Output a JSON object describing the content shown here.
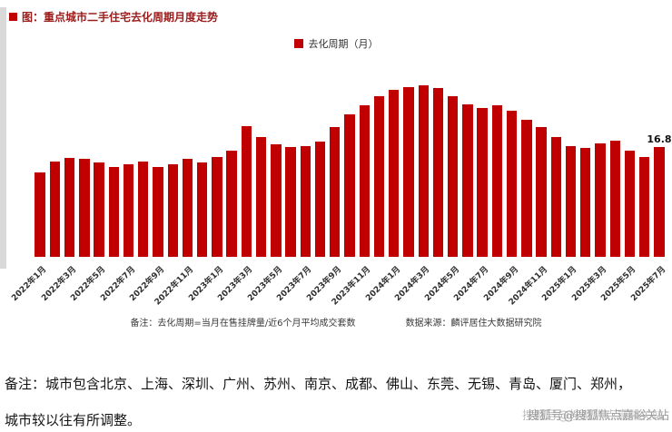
{
  "page": {
    "title": "图：重点城市二手住宅去化周期月度走势",
    "footer_line1": "备注：城市包含北京、上海、深圳、广州、苏州、南京、成都、佛山、东莞、无锡、青岛、厦门、郑州，",
    "footer_line2": "城市较以往有所调整。",
    "watermark": "搜狐号@搜狐焦点嘉峪关站"
  },
  "chart_data": {
    "type": "bar",
    "title": "重点城市二手住宅去化周期月度走势",
    "legend": "去化周期（月）",
    "ylabel": "去化周期（月）",
    "bar_color": "#C00000",
    "grid": false,
    "legend_position": "top",
    "ylim": [
      0,
      28
    ],
    "x_tick_step": 2,
    "categories": [
      "2022年1月",
      "2022年2月",
      "2022年3月",
      "2022年4月",
      "2022年5月",
      "2022年6月",
      "2022年7月",
      "2022年8月",
      "2022年9月",
      "2022年10月",
      "2022年11月",
      "2022年12月",
      "2023年1月",
      "2023年2月",
      "2023年3月",
      "2023年4月",
      "2023年5月",
      "2023年6月",
      "2023年7月",
      "2023年8月",
      "2023年9月",
      "2023年10月",
      "2023年11月",
      "2023年12月",
      "2024年1月",
      "2024年2月",
      "2024年3月",
      "2024年4月",
      "2024年5月",
      "2024年6月",
      "2024年7月",
      "2024年8月",
      "2024年9月",
      "2024年10月",
      "2024年11月",
      "2024年12月",
      "2025年1月",
      "2025年2月",
      "2025年3月",
      "2025年4月",
      "2025年5月",
      "2025年6月",
      "2025年7月"
    ],
    "values": [
      12.9,
      14.6,
      15.2,
      15.0,
      14.4,
      13.7,
      14.2,
      14.6,
      13.8,
      14.1,
      15.0,
      14.4,
      15.3,
      16.2,
      20.0,
      18.3,
      17.2,
      16.8,
      17.0,
      17.6,
      19.8,
      21.8,
      23.2,
      24.6,
      25.6,
      26.0,
      26.3,
      25.8,
      24.6,
      23.4,
      22.8,
      23.2,
      22.4,
      21.0,
      19.8,
      18.4,
      17.0,
      16.6,
      17.4,
      17.8,
      16.2,
      15.3,
      16.8
    ],
    "x_tick_labels": [
      "2022年1月",
      "2022年3月",
      "2022年5月",
      "2022年7月",
      "2022年9月",
      "2022年11月",
      "2023年1月",
      "2023年3月",
      "2023年5月",
      "2023年7月",
      "2023年9月",
      "2023年11月",
      "2024年1月",
      "2024年3月",
      "2024年5月",
      "2024年7月",
      "2024年9月",
      "2024年11月",
      "2025年1月",
      "2025年3月",
      "2025年5月",
      "2025年7月"
    ],
    "last_value_label": "16.8",
    "note": "备注：去化周期=当月在售挂牌量/近6个月平均成交套数",
    "source": "数据来源：麟评居住大数据研究院"
  }
}
